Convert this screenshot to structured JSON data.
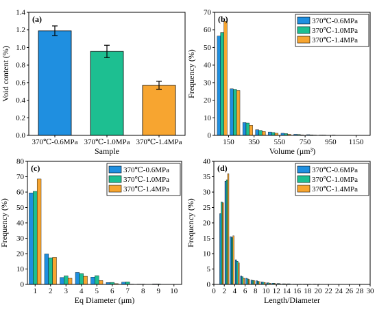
{
  "colors": {
    "s1": "#1f8fe0",
    "s2": "#1dbf91",
    "s3": "#f7a530"
  },
  "chart_data": [
    {
      "id": "a",
      "type": "bar",
      "panel_label": "(a)",
      "xlabel": "Sample",
      "ylabel": "Void content (%)",
      "ylim": [
        0.0,
        1.4
      ],
      "yticks": [
        "0.0",
        "0.2",
        "0.4",
        "0.6",
        "0.8",
        "1.0",
        "1.2",
        "1.4"
      ],
      "categories": [
        "370℃-0.6MPa",
        "370℃-1.0MPa",
        "370℃-1.4MPa"
      ],
      "values": [
        1.19,
        0.955,
        0.57
      ],
      "errors": [
        0.055,
        0.07,
        0.045
      ],
      "legend": []
    },
    {
      "id": "b",
      "type": "bar",
      "panel_label": "(b)",
      "xlabel": "Volume (μm³)",
      "ylabel": "Frequency (%)",
      "ylim": [
        0,
        70
      ],
      "yticks": [
        "0",
        "10",
        "20",
        "30",
        "40",
        "50",
        "60",
        "70"
      ],
      "xlim": [
        40,
        1260
      ],
      "xtick_values": [
        150,
        350,
        550,
        750,
        950,
        1150
      ],
      "xtick_labels": [
        "150",
        "350",
        "550",
        "750",
        "950",
        "1150"
      ],
      "x": [
        100,
        200,
        300,
        400,
        500,
        600,
        700,
        800,
        900,
        1000,
        1100,
        1200
      ],
      "series": [
        {
          "name": "370℃-0.6MPa",
          "values": [
            56.5,
            26.5,
            7.3,
            3.2,
            1.9,
            1.2,
            0.6,
            0.4,
            0.2,
            0.2,
            0.1,
            0.1
          ]
        },
        {
          "name": "370℃-1.0MPa",
          "values": [
            58.5,
            26.2,
            7.0,
            2.8,
            1.6,
            1.0,
            0.5,
            0.3,
            0.2,
            0.1,
            0.1,
            0.0
          ]
        },
        {
          "name": "370℃-1.4MPa",
          "values": [
            64.8,
            25.5,
            5.7,
            2.2,
            1.2,
            0.6,
            0.3,
            0.2,
            0.1,
            0.1,
            0.0,
            0.0
          ]
        }
      ],
      "legend": [
        "370℃-0.6MPa",
        "370℃-1.0MPa",
        "370℃-1.4MPa"
      ]
    },
    {
      "id": "c",
      "type": "bar",
      "panel_label": "(c)",
      "xlabel": "Eq Diameter (μm)",
      "ylabel": "Frequency (%)",
      "ylim": [
        0,
        80
      ],
      "yticks": [
        "0",
        "10",
        "20",
        "30",
        "40",
        "50",
        "60",
        "70",
        "80"
      ],
      "xlim": [
        0.5,
        10.5
      ],
      "xtick_values": [
        1,
        2,
        3,
        4,
        5,
        6,
        7,
        8,
        9,
        10
      ],
      "xtick_labels": [
        "1",
        "2",
        "3",
        "4",
        "5",
        "6",
        "7",
        "8",
        "9",
        "10"
      ],
      "x": [
        1,
        2,
        3,
        4,
        5,
        6,
        7,
        8,
        9
      ],
      "series": [
        {
          "name": "370℃-0.6MPa",
          "values": [
            59.5,
            19.8,
            4.5,
            7.8,
            4.8,
            1.2,
            1.5,
            0.2,
            0.3
          ]
        },
        {
          "name": "370℃-1.0MPa",
          "values": [
            60.5,
            17.3,
            5.5,
            7.0,
            5.6,
            1.3,
            1.6,
            0.2,
            0.3
          ]
        },
        {
          "name": "370℃-1.4MPa",
          "values": [
            68.5,
            17.6,
            4.0,
            5.3,
            2.5,
            0.5,
            0.2,
            0.1,
            0.1
          ]
        }
      ],
      "legend": [
        "370℃-0.6MPa",
        "370℃-1.0MPa",
        "370℃-1.4MPa"
      ]
    },
    {
      "id": "d",
      "type": "bar",
      "panel_label": "(d)",
      "xlabel": "Length/Diameter",
      "ylabel": "Frequency (%)",
      "ylim": [
        0,
        40
      ],
      "yticks": [
        "0",
        "5",
        "10",
        "15",
        "20",
        "25",
        "30",
        "35",
        "40"
      ],
      "xlim": [
        0,
        30
      ],
      "xtick_values": [
        0,
        2,
        4,
        6,
        8,
        10,
        12,
        14,
        16,
        18,
        20,
        22,
        24,
        26,
        28,
        30
      ],
      "xtick_labels": [
        "0",
        "2",
        "4",
        "6",
        "8",
        "10",
        "12",
        "14",
        "16",
        "18",
        "20",
        "22",
        "24",
        "26",
        "28",
        "30"
      ],
      "x": [
        1.5,
        2.5,
        3.5,
        4.5,
        5.5,
        6.5,
        7.5,
        8.5,
        9.5,
        10.5,
        11.5,
        12.5,
        13.5,
        14.5,
        15.5,
        16.5,
        17.5,
        18.5,
        19.5,
        20.5
      ],
      "series": [
        {
          "name": "370℃-0.6MPa",
          "values": [
            23,
            33.5,
            15.5,
            8.0,
            2.7,
            2.0,
            1.4,
            1.2,
            0.8,
            0.5,
            0.4,
            0.3,
            0.2,
            0.2,
            0.1,
            0.1,
            0.1,
            0.1,
            0.1,
            0.1
          ]
        },
        {
          "name": "370℃-1.0MPa",
          "values": [
            26.8,
            34.0,
            15.2,
            7.5,
            2.5,
            1.8,
            1.3,
            1.0,
            0.7,
            0.5,
            0.4,
            0.3,
            0.2,
            0.2,
            0.1,
            0.1,
            0.1,
            0.1,
            0.1,
            0.0
          ]
        },
        {
          "name": "370℃-1.4MPa",
          "values": [
            26.5,
            36.0,
            15.8,
            7.0,
            2.0,
            1.6,
            1.2,
            0.9,
            0.6,
            0.4,
            0.3,
            0.2,
            0.2,
            0.1,
            0.1,
            0.1,
            0.1,
            0.0,
            0.0,
            0.0
          ]
        }
      ],
      "legend": [
        "370℃-0.6MPa",
        "370℃-1.0MPa",
        "370℃-1.4MPa"
      ]
    }
  ]
}
